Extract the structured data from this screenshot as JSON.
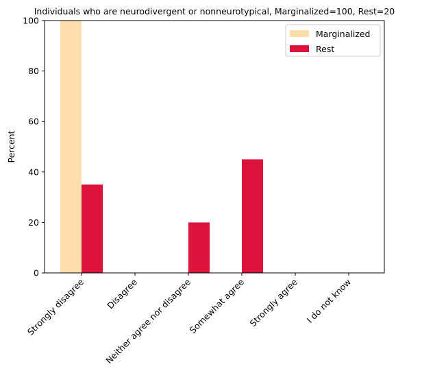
{
  "chart_data": {
    "type": "bar",
    "title": "Individuals who are neurodivergent or nonneurotypical, Marginalized=100, Rest=20",
    "xlabel": "",
    "ylabel": "Percent",
    "categories": [
      "Strongly disagree",
      "Disagree",
      "Neither agree nor disagree",
      "Somewhat agree",
      "Strongly agree",
      "I do not know"
    ],
    "series": [
      {
        "name": "Marginalized",
        "values": [
          100,
          0,
          0,
          0,
          0,
          0
        ],
        "color": "#FFDEAD"
      },
      {
        "name": "Rest",
        "values": [
          35,
          0,
          20,
          45,
          0,
          0
        ],
        "color": "#DC143C"
      }
    ],
    "ylim": [
      0,
      100
    ],
    "yticks": [
      0,
      20,
      40,
      60,
      80,
      100
    ],
    "grid": false,
    "legend_position": "top-right"
  }
}
